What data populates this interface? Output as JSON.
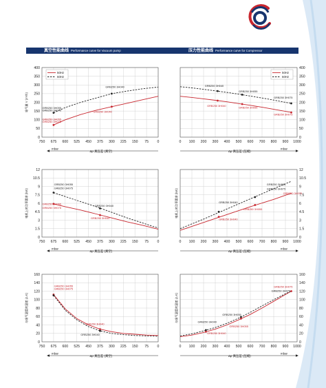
{
  "header": {
    "vacuum_title_zh": "真空性能曲线",
    "vacuum_title_en": "Performance curve for Vacuum pump",
    "pressure_title_zh": "压力性能曲线",
    "pressure_title_en": "Performance curve for Compressor"
  },
  "colors": {
    "brand_blue": "#17356e",
    "brand_red": "#c8262e",
    "line_50hz": "#c8262e",
    "line_60hz": "#222222",
    "grid": "#c8c8c8",
    "deco_blue": "#dbe9f6"
  },
  "icons": {
    "logo": "company-logo-icon"
  },
  "chart_data": [
    {
      "id": "vac-flow",
      "type": "line",
      "xlim": [
        750,
        0
      ],
      "ylim": [
        0,
        400
      ],
      "xticks": [
        750,
        675,
        600,
        525,
        450,
        375,
        300,
        225,
        150,
        75,
        0
      ],
      "yticks": [
        0,
        50,
        100,
        150,
        200,
        250,
        300,
        350,
        400
      ],
      "ylabel": "吸气量 V (m³/h)",
      "unit": "mbar",
      "xlabel": "Δp 真压差 (真空)",
      "legend": [
        "50Hz",
        "60Hz"
      ],
      "series": [
        {
          "name": "50Hz",
          "x": [
            675,
            600,
            500,
            400,
            300,
            200,
            100,
            0
          ],
          "y": [
            70,
            100,
            130,
            155,
            175,
            195,
            215,
            235
          ]
        },
        {
          "name": "60Hz",
          "x": [
            675,
            600,
            500,
            400,
            300,
            200,
            100,
            0
          ],
          "y": [
            140,
            170,
            200,
            225,
            250,
            265,
            278,
            288
          ]
        }
      ],
      "points": [
        {
          "x": 675,
          "y": 70,
          "series": "50Hz"
        },
        {
          "x": 675,
          "y": 140,
          "series": "60Hz"
        },
        {
          "x": 300,
          "y": 175,
          "series": "50Hz"
        },
        {
          "x": 300,
          "y": 250,
          "series": "60Hz"
        }
      ],
      "annotations": [
        {
          "text": "GRB250 3H055",
          "x": 748,
          "y": 163,
          "color": "#222222"
        },
        {
          "text": "GRB250 3H075",
          "x": 748,
          "y": 148,
          "color": "#222222"
        },
        {
          "text": "GRB250 3H055",
          "x": 748,
          "y": 98,
          "color": "#c8262e"
        },
        {
          "text": "GRB250 3H075",
          "x": 748,
          "y": 83,
          "color": "#c8262e"
        },
        {
          "text": "GRB250 3H040",
          "x": 340,
          "y": 283,
          "color": "#222222"
        },
        {
          "text": "GRB250 3H040",
          "x": 420,
          "y": 140,
          "color": "#c8262e"
        }
      ]
    },
    {
      "id": "press-flow",
      "type": "line",
      "xlim": [
        0,
        1000
      ],
      "ylim": [
        0,
        400
      ],
      "xticks": [
        0,
        100,
        200,
        300,
        400,
        500,
        600,
        700,
        800,
        900,
        1000
      ],
      "yticks": [
        0,
        50,
        100,
        150,
        200,
        250,
        300,
        350,
        400
      ],
      "ylabel": "",
      "unit": "mbar",
      "xlabel": "Δp 真压差 (压缩)",
      "legend": [
        "50Hz",
        "60Hz"
      ],
      "series": [
        {
          "name": "50Hz",
          "x": [
            0,
            100,
            200,
            300,
            400,
            500,
            600,
            700,
            800,
            900,
            950
          ],
          "y": [
            235,
            228,
            220,
            212,
            203,
            193,
            183,
            172,
            160,
            148,
            142
          ]
        },
        {
          "name": "60Hz",
          "x": [
            0,
            100,
            200,
            300,
            400,
            500,
            600,
            700,
            800,
            900,
            950
          ],
          "y": [
            290,
            283,
            275,
            266,
            257,
            247,
            236,
            225,
            213,
            200,
            194
          ]
        }
      ],
      "points": [
        {
          "x": 320,
          "y": 210,
          "series": "50Hz"
        },
        {
          "x": 320,
          "y": 265,
          "series": "60Hz"
        },
        {
          "x": 530,
          "y": 190,
          "series": "50Hz"
        },
        {
          "x": 530,
          "y": 244,
          "series": "60Hz"
        },
        {
          "x": 950,
          "y": 142,
          "series": "50Hz"
        },
        {
          "x": 950,
          "y": 194,
          "series": "60Hz"
        }
      ],
      "annotations": [
        {
          "text": "GRB250 3H040",
          "x": 210,
          "y": 290,
          "color": "#222222"
        },
        {
          "text": "GRB250 3H055",
          "x": 500,
          "y": 258,
          "color": "#222222"
        },
        {
          "text": "GRB250 3H040",
          "x": 230,
          "y": 175,
          "color": "#c8262e"
        },
        {
          "text": "GRB250 3H055",
          "x": 500,
          "y": 165,
          "color": "#c8262e"
        },
        {
          "text": "GRB250 3H075",
          "x": 800,
          "y": 222,
          "color": "#222222"
        },
        {
          "text": "GRB250 3H075",
          "x": 800,
          "y": 125,
          "color": "#c8262e"
        }
      ]
    },
    {
      "id": "vac-power",
      "type": "line",
      "xlim": [
        750,
        0
      ],
      "ylim": [
        0,
        12
      ],
      "xticks": [
        750,
        675,
        600,
        525,
        450,
        375,
        300,
        225,
        150,
        75,
        0
      ],
      "yticks": [
        0,
        1.5,
        3,
        4.5,
        6,
        7.5,
        9,
        10.5,
        12
      ],
      "ylabel": "电机上的功率要求 (kW)",
      "unit": "mbar",
      "xlabel": "Δp 真压差 (真空)",
      "series": [
        {
          "name": "50Hz",
          "x": [
            675,
            600,
            500,
            400,
            300,
            200,
            100,
            0
          ],
          "y": [
            5.9,
            5.4,
            4.8,
            4.1,
            3.4,
            2.7,
            2.1,
            1.4
          ]
        },
        {
          "name": "60Hz",
          "x": [
            675,
            600,
            500,
            400,
            300,
            200,
            100,
            0
          ],
          "y": [
            7.9,
            7.2,
            6.3,
            5.4,
            4.4,
            3.4,
            2.5,
            1.6
          ]
        }
      ],
      "points": [
        {
          "x": 675,
          "y": 5.9,
          "series": "50Hz"
        },
        {
          "x": 675,
          "y": 7.9,
          "series": "60Hz"
        },
        {
          "x": 375,
          "y": 3.9,
          "series": "50Hz"
        },
        {
          "x": 375,
          "y": 5.1,
          "series": "60Hz"
        }
      ],
      "annotations": [
        {
          "text": "GRB250 3H055",
          "x": 672,
          "y": 9.2,
          "color": "#222222"
        },
        {
          "text": "GRB250 3H075",
          "x": 672,
          "y": 8.5,
          "color": "#222222"
        },
        {
          "text": "GRB250 3H055",
          "x": 748,
          "y": 5.7,
          "color": "#c8262e"
        },
        {
          "text": "GRB250 3H075",
          "x": 748,
          "y": 5.0,
          "color": "#c8262e"
        },
        {
          "text": "GRB250 3H040",
          "x": 410,
          "y": 5.4,
          "color": "#222222"
        },
        {
          "text": "GRB250 3H040",
          "x": 435,
          "y": 3.2,
          "color": "#c8262e"
        }
      ]
    },
    {
      "id": "press-power",
      "type": "line",
      "xlim": [
        0,
        1000
      ],
      "ylim": [
        0,
        12
      ],
      "xticks": [
        0,
        100,
        200,
        300,
        400,
        500,
        600,
        700,
        800,
        900,
        1000
      ],
      "yticks": [
        0,
        1.5,
        3,
        4.5,
        6,
        7.5,
        9,
        10.5,
        12
      ],
      "ylabel": "电机上的功率要求 (kW)",
      "unit": "mbar",
      "xlabel": "Δp 真压差 (压缩)",
      "series": [
        {
          "name": "50Hz",
          "x": [
            0,
            200,
            400,
            600,
            800,
            950
          ],
          "y": [
            1.2,
            2.6,
            4.0,
            5.4,
            6.7,
            7.8
          ]
        },
        {
          "name": "60Hz",
          "x": [
            0,
            200,
            400,
            600,
            800,
            950
          ],
          "y": [
            1.5,
            3.2,
            5.0,
            6.8,
            8.6,
            9.9
          ]
        }
      ],
      "points": [
        {
          "x": 330,
          "y": 3.6,
          "series": "50Hz"
        },
        {
          "x": 330,
          "y": 4.5,
          "series": "60Hz"
        },
        {
          "x": 640,
          "y": 5.7,
          "series": "50Hz"
        },
        {
          "x": 640,
          "y": 7.1,
          "series": "60Hz"
        }
      ],
      "annotations": [
        {
          "text": "GRB250 3H040",
          "x": 330,
          "y": 6.0,
          "color": "#222222"
        },
        {
          "text": "GRB250 3H040",
          "x": 330,
          "y": 3.0,
          "color": "#c8262e"
        },
        {
          "text": "GRB250 3H055",
          "x": 540,
          "y": 4.8,
          "color": "#c8262e"
        },
        {
          "text": "GRB250 3H055",
          "x": 740,
          "y": 9.2,
          "color": "#222222"
        },
        {
          "text": "GRB250 3H075",
          "x": 740,
          "y": 8.4,
          "color": "#222222"
        },
        {
          "text": "GRB250 3H075",
          "x": 880,
          "y": 7.6,
          "color": "#c8262e"
        }
      ]
    },
    {
      "id": "vac-temp",
      "type": "line",
      "xlim": [
        750,
        0
      ],
      "ylim": [
        0,
        160
      ],
      "xticks": [
        750,
        675,
        600,
        525,
        450,
        375,
        300,
        225,
        150,
        75,
        0
      ],
      "yticks": [
        0,
        20,
        40,
        60,
        80,
        100,
        120,
        140,
        160
      ],
      "ylabel": "与吸气温度的温差 (Δ K)",
      "unit": "mbar",
      "xlabel": "Δp 真压差 (真空)",
      "series": [
        {
          "name": "50Hz",
          "x": [
            675,
            600,
            525,
            450,
            375,
            300,
            225,
            150,
            75,
            0
          ],
          "y": [
            112,
            78,
            55,
            40,
            30,
            24,
            20,
            18,
            16,
            15
          ]
        },
        {
          "name": "60Hz",
          "x": [
            675,
            600,
            525,
            450,
            375,
            300,
            225,
            150,
            75,
            0
          ],
          "y": [
            110,
            75,
            52,
            36,
            26,
            20,
            17,
            15,
            14,
            13
          ]
        }
      ],
      "points": [
        {
          "x": 675,
          "y": 112,
          "series": "50Hz"
        },
        {
          "x": 675,
          "y": 110,
          "series": "60Hz"
        },
        {
          "x": 375,
          "y": 30,
          "series": "50Hz"
        },
        {
          "x": 375,
          "y": 26,
          "series": "60Hz"
        }
      ],
      "annotations": [
        {
          "text": "GRB250 3H055",
          "x": 672,
          "y": 130,
          "color": "#c8262e"
        },
        {
          "text": "GRB250 3H075",
          "x": 672,
          "y": 123,
          "color": "#c8262e"
        },
        {
          "text": "GRB250 3H040",
          "x": 470,
          "y": 40,
          "color": "#c8262e"
        },
        {
          "text": "GRB250 3H040",
          "x": 500,
          "y": 15,
          "color": "#222222"
        }
      ]
    },
    {
      "id": "press-temp",
      "type": "line",
      "xlim": [
        0,
        1000
      ],
      "ylim": [
        0,
        160
      ],
      "xticks": [
        0,
        100,
        200,
        300,
        400,
        500,
        600,
        700,
        800,
        900,
        1000
      ],
      "yticks": [
        0,
        20,
        40,
        60,
        80,
        100,
        120,
        140,
        160
      ],
      "ylabel": "与吸气温度的温差 (Δ K)",
      "unit": "mbar",
      "xlabel": "Δp 真压差 (压缩)",
      "series": [
        {
          "name": "50Hz",
          "x": [
            0,
            100,
            200,
            300,
            400,
            500,
            600,
            700,
            800,
            900,
            950
          ],
          "y": [
            12,
            16,
            22,
            30,
            40,
            52,
            65,
            80,
            96,
            112,
            120
          ]
        },
        {
          "name": "60Hz",
          "x": [
            0,
            100,
            200,
            300,
            400,
            500,
            600,
            700,
            800,
            900,
            950
          ],
          "y": [
            14,
            19,
            26,
            34,
            44,
            56,
            70,
            85,
            100,
            114,
            120
          ]
        }
      ],
      "points": [
        {
          "x": 220,
          "y": 24,
          "series": "50Hz"
        },
        {
          "x": 220,
          "y": 28,
          "series": "60Hz"
        },
        {
          "x": 520,
          "y": 55,
          "series": "50Hz"
        },
        {
          "x": 520,
          "y": 59,
          "series": "60Hz"
        },
        {
          "x": 950,
          "y": 120,
          "series": "50Hz"
        }
      ],
      "annotations": [
        {
          "text": "GRB250 3H040",
          "x": 150,
          "y": 45,
          "color": "#222222"
        },
        {
          "text": "GRB250 3H055",
          "x": 360,
          "y": 62,
          "color": "#222222"
        },
        {
          "text": "GRB250 3H040",
          "x": 230,
          "y": 18,
          "color": "#c8262e"
        },
        {
          "text": "GRB250 3H055",
          "x": 420,
          "y": 34,
          "color": "#c8262e"
        },
        {
          "text": "GRB250 3H075",
          "x": 800,
          "y": 128,
          "color": "#c8262e"
        },
        {
          "text": "GRB250 3H075",
          "x": 780,
          "y": 118,
          "color": "#222222"
        }
      ]
    }
  ]
}
